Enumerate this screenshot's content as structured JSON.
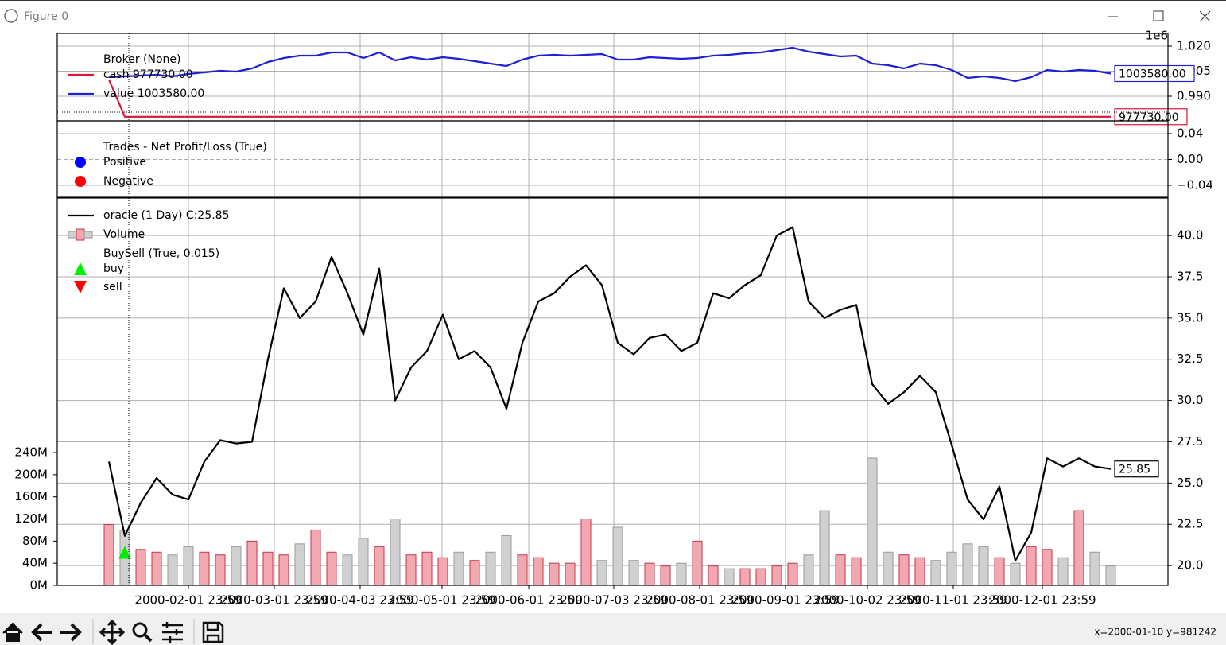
{
  "window": {
    "title": "Figure 0",
    "status": "x=2000-01-10 y=981242"
  },
  "chart_data": [
    {
      "type": "line",
      "title": "Broker (None)",
      "ylim": [
        975240,
        1027620
      ],
      "yticks": [
        {
          "value": 990000,
          "label": "0.990"
        },
        {
          "value": 1005000,
          "label": "1.005"
        },
        {
          "value": 1020000,
          "label": "1.020"
        }
      ],
      "y_offset_label": "1e6",
      "grid": true,
      "series": [
        {
          "name": "cash 977730.00",
          "color": "#dc143c",
          "last_label": "977730.00",
          "values": [
            1000000,
            977730,
            977730,
            977730,
            977730,
            977730,
            977730,
            977730,
            977730,
            977730,
            977730,
            977730,
            977730,
            977730,
            977730,
            977730,
            977730,
            977730,
            977730,
            977730,
            977730,
            977730,
            977730,
            977730,
            977730,
            977730,
            977730,
            977730,
            977730,
            977730,
            977730,
            977730,
            977730,
            977730,
            977730,
            977730,
            977730,
            977730,
            977730,
            977730,
            977730,
            977730,
            977730,
            977730,
            977730,
            977730,
            977730,
            977730,
            977730,
            977730,
            977730,
            977730,
            977730,
            977730,
            977730,
            977730,
            977730,
            977730,
            977730,
            977730,
            977730,
            977730,
            977730,
            977730
          ]
        },
        {
          "name": "value 1003580.00",
          "color": "#1f1fd6",
          "last_label": "1003580.00",
          "values": [
            1001430,
            1001900,
            1002380,
            1002860,
            1001900,
            1003330,
            1004290,
            1005240,
            1004760,
            1006670,
            1010480,
            1012860,
            1014290,
            1014290,
            1016190,
            1016190,
            1012860,
            1016190,
            1011430,
            1013330,
            1011900,
            1013330,
            1012380,
            1010950,
            1009520,
            1008100,
            1011900,
            1014290,
            1014760,
            1014290,
            1014760,
            1015240,
            1011900,
            1011900,
            1013330,
            1012860,
            1012380,
            1012860,
            1014290,
            1014760,
            1015710,
            1016190,
            1017620,
            1019050,
            1016670,
            1015240,
            1013810,
            1014290,
            1009520,
            1008570,
            1006670,
            1009520,
            1008570,
            1005710,
            1000950,
            1001900,
            1000950,
            999050,
            1001430,
            1005710,
            1004760,
            1005710,
            1005240,
            1003580
          ]
        }
      ]
    },
    {
      "type": "scatter",
      "title": "Trades - Net Profit/Loss (True)",
      "ylim": [
        -0.0585,
        0.0597
      ],
      "yticks": [
        {
          "value": -0.04,
          "label": "−0.04"
        },
        {
          "value": 0,
          "label": "0.00"
        },
        0.04
      ],
      "grid": true,
      "series": [
        {
          "name": "Positive",
          "color": "#0000ff",
          "values": []
        },
        {
          "name": "Negative",
          "color": "#ff0000",
          "values": []
        }
      ]
    },
    {
      "type": "line",
      "xlim": [
        -3.25,
        66.6
      ],
      "xticks": [
        {
          "value": 5,
          "label": "2000-02-01 23:59"
        },
        {
          "value": 10.4,
          "label": "2000-03-01 23:59"
        },
        {
          "value": 15.8,
          "label": "2000-04-03 23:59"
        },
        {
          "value": 20.95,
          "label": "2000-05-01 23:59"
        },
        {
          "value": 26.4,
          "label": "2000-06-01 23:59"
        },
        {
          "value": 31.75,
          "label": "2000-07-03 23:59"
        },
        {
          "value": 37.15,
          "label": "2000-08-01 23:59"
        },
        {
          "value": 42.55,
          "label": "2000-09-01 23:59"
        },
        {
          "value": 47.7,
          "label": "2000-10-02 23:59"
        },
        {
          "value": 53.1,
          "label": "2000-11-01 23:59"
        },
        {
          "value": 58.7,
          "label": "2000-12-01 23:59"
        }
      ],
      "ylim": [
        18.8,
        42.27
      ],
      "yticks": [
        {
          "value": 20,
          "label": "20.0"
        },
        22.5,
        {
          "value": 25,
          "label": "25.0"
        },
        27.5,
        {
          "value": 30,
          "label": "30.0"
        },
        32.5,
        {
          "value": 35,
          "label": "35.0"
        },
        37.5,
        {
          "value": 40,
          "label": "40.0"
        }
      ],
      "y2lim": [
        0,
        700000000
      ],
      "y2ticks": [
        {
          "value": 0,
          "label": "0M"
        },
        {
          "value": 40000000,
          "label": "40M"
        },
        {
          "value": 80000000,
          "label": "80M"
        },
        {
          "value": 120000000,
          "label": "120M"
        },
        {
          "value": 160000000,
          "label": "160M"
        },
        {
          "value": 200000000,
          "label": "200M"
        },
        {
          "value": 240000000,
          "label": "240M"
        }
      ],
      "grid": true,
      "series": [
        {
          "name": "oracle (1 Day) C:25.85",
          "color": "#000000",
          "last_label": "25.85",
          "values": [
            26.3,
            21.8,
            23.8,
            25.3,
            24.3,
            24.0,
            26.3,
            27.6,
            27.4,
            27.5,
            32.5,
            36.8,
            35.0,
            36.0,
            38.7,
            36.5,
            34.0,
            38.0,
            30.0,
            32.0,
            33.0,
            35.2,
            32.5,
            33.0,
            32.0,
            29.5,
            33.5,
            36.0,
            36.5,
            37.5,
            38.2,
            37.0,
            33.5,
            32.8,
            33.8,
            34.0,
            33.0,
            33.5,
            36.5,
            36.2,
            37.0,
            37.6,
            40.0,
            40.5,
            36.0,
            35.0,
            35.5,
            35.8,
            31.0,
            29.8,
            30.5,
            31.5,
            30.5,
            27.3,
            24.0,
            22.8,
            24.8,
            20.3,
            22.0,
            26.5,
            26.0,
            26.5,
            26.0,
            25.85
          ]
        },
        {
          "name": "Volume",
          "axis": "y2",
          "up_color": "#f2a7b1",
          "up_edge": "#c0394b",
          "down_color": "#d0d0d0",
          "down_edge": "#9a9a9a",
          "values": [
            110000000,
            100000000,
            65000000,
            60000000,
            55000000,
            70000000,
            60000000,
            55000000,
            70000000,
            80000000,
            60000000,
            55000000,
            75000000,
            100000000,
            60000000,
            55000000,
            85000000,
            70000000,
            120000000,
            55000000,
            60000000,
            50000000,
            60000000,
            45000000,
            60000000,
            90000000,
            55000000,
            50000000,
            40000000,
            40000000,
            120000000,
            45000000,
            105000000,
            45000000,
            40000000,
            35000000,
            40000000,
            80000000,
            35000000,
            30000000,
            30000000,
            30000000,
            35000000,
            40000000,
            55000000,
            135000000,
            55000000,
            50000000,
            230000000,
            60000000,
            55000000,
            50000000,
            45000000,
            60000000,
            75000000,
            70000000,
            50000000,
            40000000,
            70000000,
            65000000,
            50000000,
            135000000,
            60000000,
            35000000
          ]
        }
      ],
      "markers": {
        "name": "BuySell (True, 0.015)",
        "series": [
          {
            "name": "buy",
            "color": "#00ee00",
            "direction": "up",
            "x": [
              1
            ],
            "values": [
              20.8
            ]
          },
          {
            "name": "sell",
            "color": "#ff0000",
            "direction": "down",
            "x": [],
            "values": []
          }
        ]
      }
    }
  ]
}
